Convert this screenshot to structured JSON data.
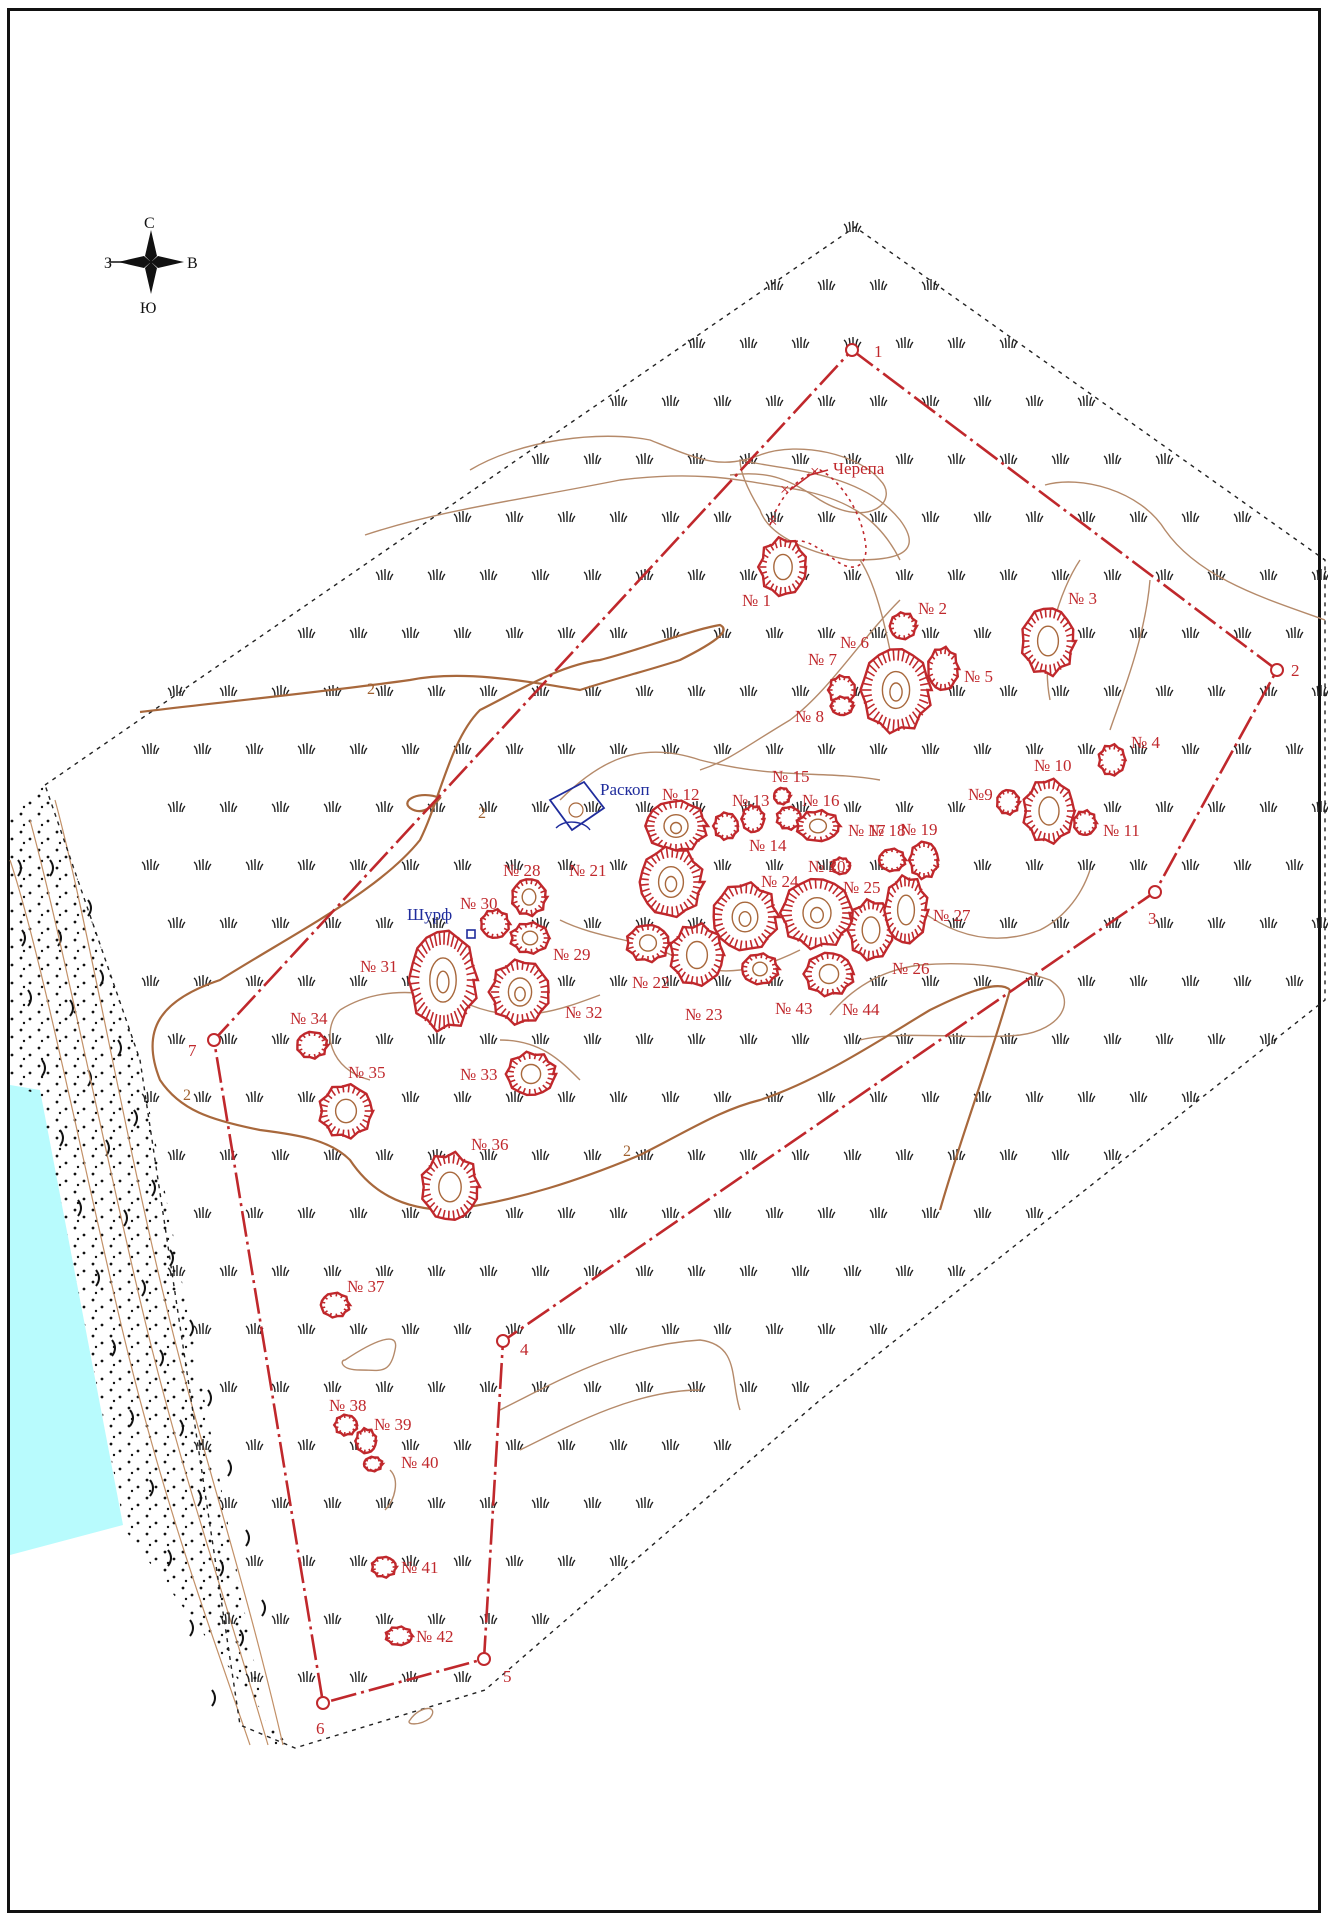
{
  "compass": {
    "north": "С",
    "south": "Ю",
    "west": "З",
    "east": "В"
  },
  "labels": {
    "skulls": "Черепа",
    "excavation": "Раскоп",
    "pit": "Шурф",
    "contour_value": "2"
  },
  "boundary_points": [
    "1",
    "2",
    "3",
    "4",
    "5",
    "6",
    "7"
  ],
  "mounds": [
    "№ 1",
    "№ 2",
    "№ 3",
    "№ 4",
    "№ 5",
    "№ 6",
    "№ 7",
    "№ 8",
    "№9",
    "№ 10",
    "№ 11",
    "№ 12",
    "№ 13",
    "№ 14",
    "№ 15",
    "№ 16",
    "№ 17",
    "№ 18",
    "№ 19",
    "№ 20",
    "№ 21",
    "№ 22",
    "№ 23",
    "№ 24",
    "№ 25",
    "№ 26",
    "№ 27",
    "№ 28",
    "№ 29",
    "№ 30",
    "№ 31",
    "№ 32",
    "№ 33",
    "№ 34",
    "№ 35",
    "№ 36",
    "№ 37",
    "№ 38",
    "№ 39",
    "№ 40",
    "№ 41",
    "№ 42",
    "№ 43",
    "№ 44"
  ],
  "colors": {
    "boundary": "#c0282c",
    "contour": "#b58a6a",
    "water": "#b8fbfd",
    "excavation": "#1f2c9c"
  }
}
